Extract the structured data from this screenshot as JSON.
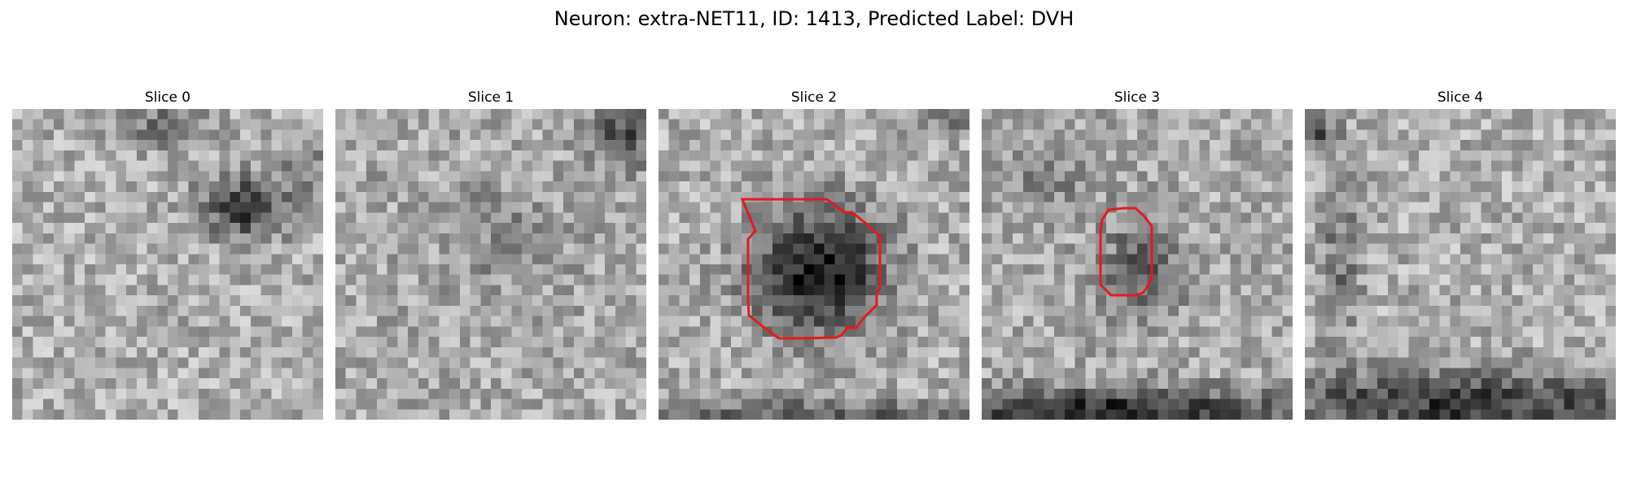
{
  "figure": {
    "title": "Neuron: extra-NET11, ID: 1413, Predicted Label: DVH"
  },
  "overlay_color": "#e41a1c",
  "slices": [
    {
      "label": "Slice 0",
      "has_contour": false
    },
    {
      "label": "Slice 1",
      "has_contour": false
    },
    {
      "label": "Slice 2",
      "has_contour": true
    },
    {
      "label": "Slice 3",
      "has_contour": true
    },
    {
      "label": "Slice 4",
      "has_contour": false
    }
  ]
}
